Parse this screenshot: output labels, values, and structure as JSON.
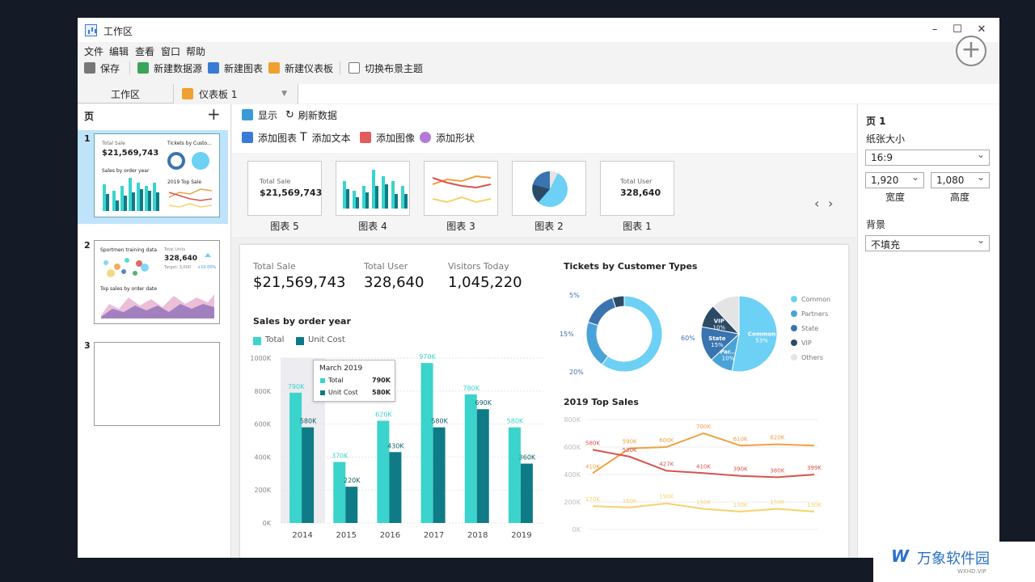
{
  "window": {
    "title": "工作区",
    "min": "–",
    "max": "☐",
    "close": "✕"
  },
  "menu": [
    "文件",
    "编辑",
    "查看",
    "窗口",
    "帮助"
  ],
  "toolbar": {
    "save": "保存",
    "new_source": "新建数据源",
    "new_chart": "新建图表",
    "new_dashboard": "新建仪表板",
    "switch_theme": "切换布景主题"
  },
  "tabs": {
    "workspace": "工作区",
    "dashboard": "仪表板 1"
  },
  "left": {
    "title": "页",
    "add": "+",
    "pages": [
      {
        "num": "1",
        "kpi_label": "Total Sale",
        "kpi_value": "$21,569,743",
        "t1": "Tickets by Custo...",
        "t2": "Sales by order year",
        "t3": "2019 Top Sale"
      },
      {
        "num": "2",
        "t1": "Sportmen training data",
        "kpi_label": "Total Units",
        "kpi_value": "328,640",
        "target": "Target: 3,000",
        "delta": "+10.00%",
        "t2": "Top sales by order date"
      },
      {
        "num": "3"
      }
    ]
  },
  "center": {
    "display": "显示",
    "refresh": "刷新数据",
    "add_chart": "添加图表",
    "add_text": "添加文本",
    "add_image": "添加图像",
    "add_shape": "添加形状",
    "cards": [
      {
        "label": "图表 5",
        "kl": "Total Sale",
        "kv": "$21,569,743"
      },
      {
        "label": "图表 4"
      },
      {
        "label": "图表 3"
      },
      {
        "label": "图表 2"
      },
      {
        "label": "图表 1",
        "kl": "Total User",
        "kv": "328,640"
      }
    ],
    "nav_prev": "‹",
    "nav_next": "›"
  },
  "kpis": [
    {
      "label": "Total Sale",
      "value": "$21,569,743"
    },
    {
      "label": "Total User",
      "value": "328,640"
    },
    {
      "label": "Visitors Today",
      "value": "1,045,220"
    }
  ],
  "bar_chart": {
    "title": "Sales by order year",
    "legend": [
      "Total",
      "Unit Cost"
    ],
    "categories": [
      "2014",
      "2015",
      "2016",
      "2017",
      "2018",
      "2019"
    ],
    "total": [
      790,
      370,
      620,
      970,
      780,
      580
    ],
    "unit_cost": [
      580,
      220,
      430,
      580,
      690,
      360
    ],
    "total_labels": [
      "790K",
      "370K",
      "620K",
      "970K",
      "780K",
      "580K"
    ],
    "unit_labels": [
      "580K",
      "220K",
      "430K",
      "580K",
      "690K",
      "360K"
    ],
    "yticks": [
      "1000K",
      "800K",
      "600K",
      "400K",
      "200K",
      "0K"
    ],
    "ylim": [
      0,
      1000
    ],
    "tooltip": {
      "title": "March 2019",
      "rows": [
        {
          "name": "Total",
          "value": "790K"
        },
        {
          "name": "Unit Cost",
          "value": "580K"
        }
      ]
    },
    "colors": {
      "total": "#3ad4cc",
      "unit": "#0f7b86"
    }
  },
  "pie_chart": {
    "title": "Tickets by Customer Types",
    "donut": [
      {
        "name": "Common",
        "value": 60,
        "label": "60%"
      },
      {
        "name": "Partners",
        "value": 20,
        "label": "20%"
      },
      {
        "name": "State",
        "value": 15,
        "label": "15%"
      },
      {
        "name": "VIP",
        "value": 5,
        "label": "5%"
      }
    ],
    "pie": [
      {
        "name": "Common",
        "value": 53,
        "label": "Common",
        "pct": "53%"
      },
      {
        "name": "Partners",
        "value": 10,
        "label": "Par...",
        "pct": "10%"
      },
      {
        "name": "State",
        "value": 15,
        "label": "State",
        "pct": "15%"
      },
      {
        "name": "VIP",
        "value": 10,
        "label": "VIP",
        "pct": "10%"
      },
      {
        "name": "Others",
        "value": 12,
        "label": "",
        "pct": ""
      }
    ],
    "legend": [
      "Common",
      "Partners",
      "State",
      "VIP",
      "Others"
    ],
    "colors": [
      "#6dd0f5",
      "#4aa3d8",
      "#3a74b0",
      "#2b4a66",
      "#e4e4e4"
    ]
  },
  "line_chart": {
    "title": "2019 Top Sales",
    "yticks": [
      "800K",
      "600K",
      "400K",
      "200K",
      "0K"
    ],
    "ylim": [
      0,
      800
    ],
    "series": [
      {
        "color": "#f0a040",
        "values": [
          410,
          590,
          600,
          700,
          610,
          620,
          610
        ],
        "labels": [
          "410K",
          "590K",
          "600K",
          "700K",
          "610K",
          "620K",
          ""
        ]
      },
      {
        "color": "#d9534f",
        "values": [
          580,
          530,
          427,
          410,
          390,
          380,
          399
        ],
        "labels": [
          "580K",
          "530K",
          "427K",
          "410K",
          "390K",
          "380K",
          "399K"
        ]
      },
      {
        "color": "#f5d26a",
        "values": [
          170,
          160,
          190,
          150,
          130,
          150,
          130
        ],
        "labels": [
          "170K",
          "160K",
          "190K",
          "150K",
          "130K",
          "150K",
          "130K"
        ]
      }
    ]
  },
  "right": {
    "title": "页 1",
    "paper_size": "纸张大小",
    "ratio": "16:9",
    "width": "1,920",
    "height": "1,080",
    "width_lbl": "宽度",
    "height_lbl": "高度",
    "bg": "背景",
    "bg_value": "不填充"
  },
  "watermark": {
    "text": "万象软件园",
    "sub": "WXHD.VIP"
  }
}
